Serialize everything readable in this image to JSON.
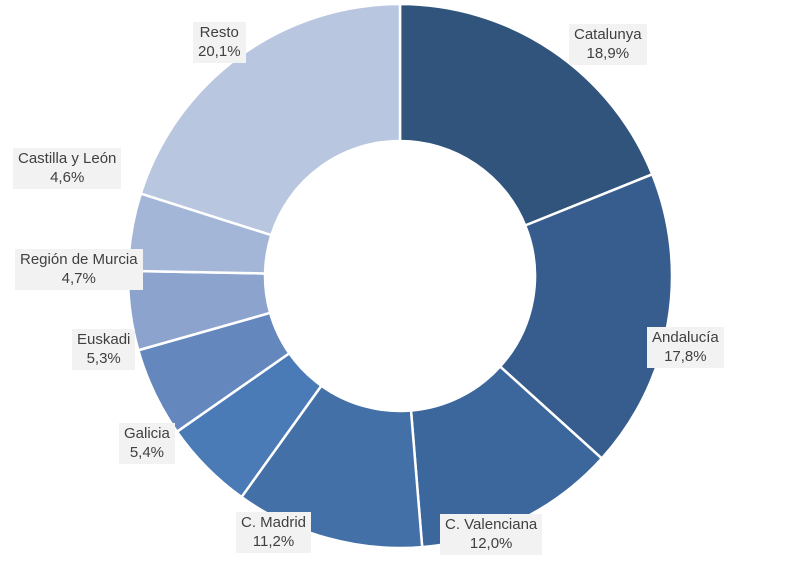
{
  "chart_data": {
    "type": "pie",
    "donut": true,
    "legend": "none",
    "slices": [
      {
        "label": "Catalunya",
        "value": 18.9,
        "display": "18,9%",
        "color": "#31547d"
      },
      {
        "label": "Andalucía",
        "value": 17.8,
        "display": "17,8%",
        "color": "#365d8d"
      },
      {
        "label": "C. Valenciana",
        "value": 12.0,
        "display": "12,0%",
        "color": "#3c679c"
      },
      {
        "label": "C. Madrid",
        "value": 11.2,
        "display": "11,2%",
        "color": "#4470a8"
      },
      {
        "label": "Galicia",
        "value": 5.4,
        "display": "5,4%",
        "color": "#4a7bb7"
      },
      {
        "label": "Euskadi",
        "value": 5.3,
        "display": "5,3%",
        "color": "#6488be"
      },
      {
        "label": "Región de Murcia",
        "value": 4.7,
        "display": "4,7%",
        "color": "#8ca4cd"
      },
      {
        "label": "Castilla y León",
        "value": 4.6,
        "display": "4,6%",
        "color": "#a4b6d8"
      },
      {
        "label": "Resto",
        "value": 20.1,
        "display": "20,1%",
        "color": "#b8c6e0"
      }
    ]
  }
}
